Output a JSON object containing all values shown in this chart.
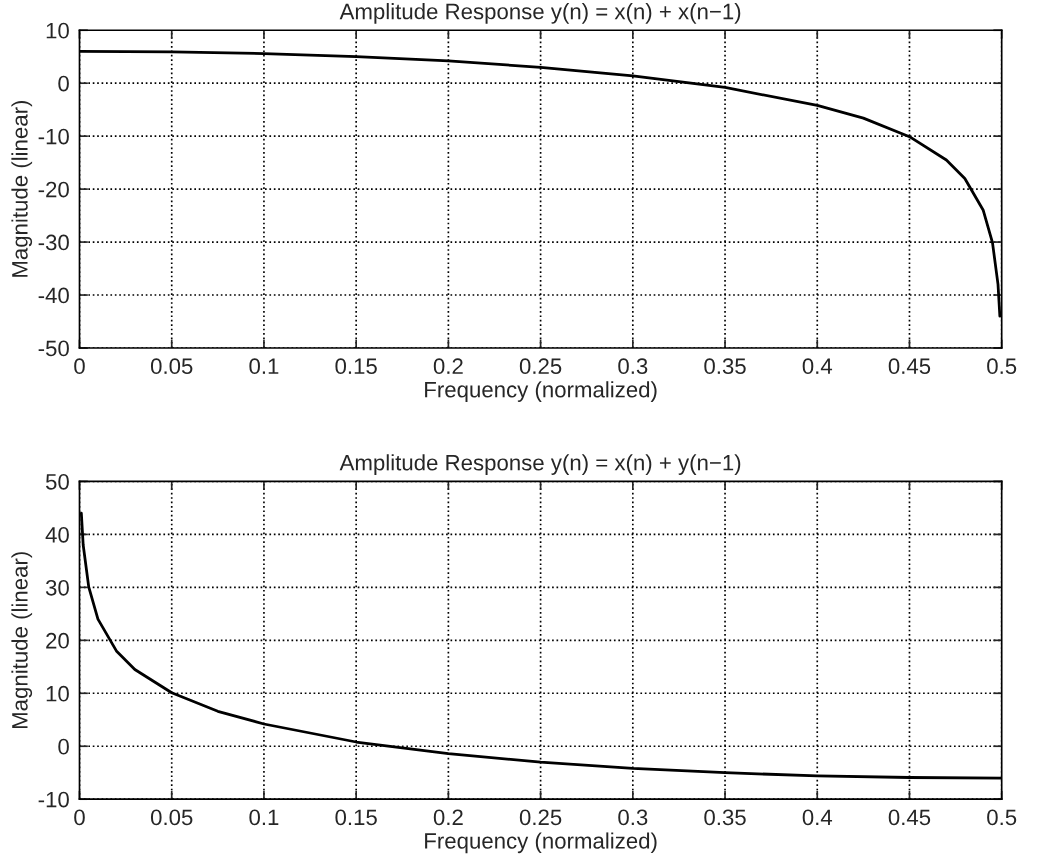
{
  "chart_data": [
    {
      "type": "line",
      "title": "Amplitude Response y(n) = x(n) + x(n−1)",
      "xlabel": "Frequency (normalized)",
      "ylabel": "Magnitude (linear)",
      "series": [
        {
          "color": "#000000",
          "x": [
            0,
            0.05,
            0.1,
            0.15,
            0.2,
            0.25,
            0.3,
            0.35,
            0.4,
            0.425,
            0.45,
            0.47,
            0.48,
            0.49,
            0.495,
            0.498,
            0.499
          ],
          "values": [
            6.0,
            5.9,
            5.6,
            5.0,
            4.2,
            3.0,
            1.4,
            -0.8,
            -4.2,
            -6.6,
            -10.1,
            -14.5,
            -18.0,
            -24.0,
            -30.1,
            -38.0,
            -44.0
          ]
        }
      ],
      "xlim": [
        0,
        0.5
      ],
      "xticks": [
        0,
        0.05,
        0.1,
        0.15,
        0.2,
        0.25,
        0.3,
        0.35,
        0.4,
        0.45,
        0.5
      ],
      "ylim": [
        -50,
        10
      ],
      "yticks": [
        -50,
        -40,
        -30,
        -20,
        -10,
        0,
        10
      ],
      "grid": true
    },
    {
      "type": "line",
      "title": "Amplitude Response y(n) = x(n) + y(n−1)",
      "xlabel": "Frequency (normalized)",
      "ylabel": "Magnitude (linear)",
      "series": [
        {
          "color": "#000000",
          "x": [
            0.001,
            0.002,
            0.005,
            0.01,
            0.02,
            0.03,
            0.05,
            0.075,
            0.1,
            0.15,
            0.2,
            0.25,
            0.3,
            0.35,
            0.4,
            0.45,
            0.5
          ],
          "values": [
            44.0,
            38.0,
            30.1,
            24.0,
            18.0,
            14.5,
            10.1,
            6.6,
            4.2,
            0.8,
            -1.4,
            -3.0,
            -4.2,
            -5.0,
            -5.6,
            -5.9,
            -6.0
          ]
        }
      ],
      "xlim": [
        0,
        0.5
      ],
      "xticks": [
        0,
        0.05,
        0.1,
        0.15,
        0.2,
        0.25,
        0.3,
        0.35,
        0.4,
        0.45,
        0.5
      ],
      "ylim": [
        -10,
        50
      ],
      "yticks": [
        -10,
        0,
        10,
        20,
        30,
        40,
        50
      ],
      "grid": true
    }
  ]
}
